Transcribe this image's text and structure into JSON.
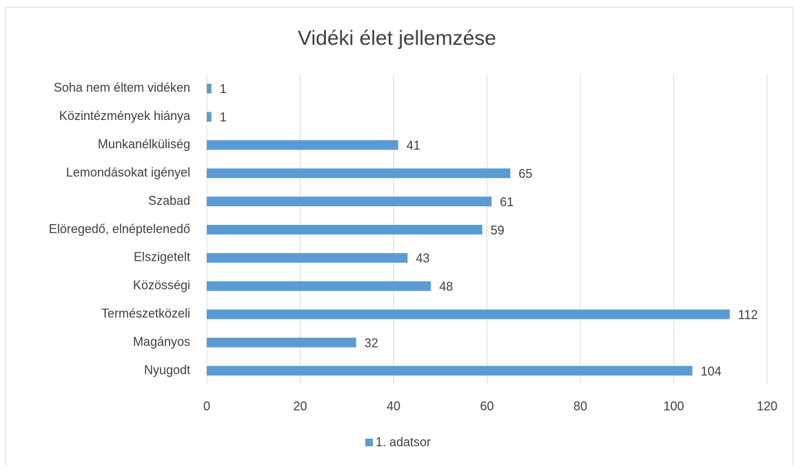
{
  "chart_data": {
    "type": "hbar",
    "title": "Vidéki élet jellemzése",
    "categories": [
      "Soha nem éltem vidéken",
      "Közintézmények hiánya",
      "Munkanélküliség",
      "Lemondásokat igényel",
      "Szabad",
      "Elöregedő, elnéptelenedő",
      "Elszigetelt",
      "Közösségi",
      "Természetközeli",
      "Magányos",
      "Nyugodt"
    ],
    "series": [
      {
        "name": "1. adatsor",
        "color": "#5b9bd5",
        "values": [
          1,
          1,
          41,
          65,
          61,
          59,
          43,
          48,
          112,
          32,
          104
        ]
      }
    ],
    "xlim": [
      0,
      120
    ],
    "xticks": [
      0,
      20,
      40,
      60,
      80,
      100,
      120
    ],
    "grid": true,
    "legend": "bottom"
  }
}
